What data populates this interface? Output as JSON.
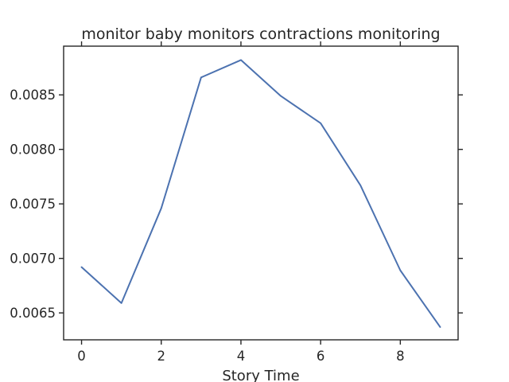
{
  "chart_data": {
    "type": "line",
    "title": "monitor baby monitors contractions monitoring",
    "xlabel": "Story Time",
    "ylabel": "",
    "x": [
      0,
      1,
      2,
      3,
      4,
      5,
      6,
      7,
      8,
      9
    ],
    "series": [
      {
        "values": [
          0.00692,
          0.00659,
          0.00746,
          0.00866,
          0.00882,
          0.00849,
          0.00824,
          0.00767,
          0.00689,
          0.00637
        ],
        "color": "#4c72b0"
      }
    ],
    "xlim": [
      -0.45,
      9.45
    ],
    "ylim": [
      0.006253,
      0.008947
    ],
    "xticks": [
      0,
      2,
      4,
      6,
      8
    ],
    "xtick_labels": [
      "0",
      "2",
      "4",
      "6",
      "8"
    ],
    "yticks": [
      0.0065,
      0.007,
      0.0075,
      0.008,
      0.0085
    ],
    "ytick_labels": [
      "0.0065",
      "0.0070",
      "0.0075",
      "0.0080",
      "0.0085"
    ],
    "grid": false,
    "ticks_on_all_sides": true
  }
}
